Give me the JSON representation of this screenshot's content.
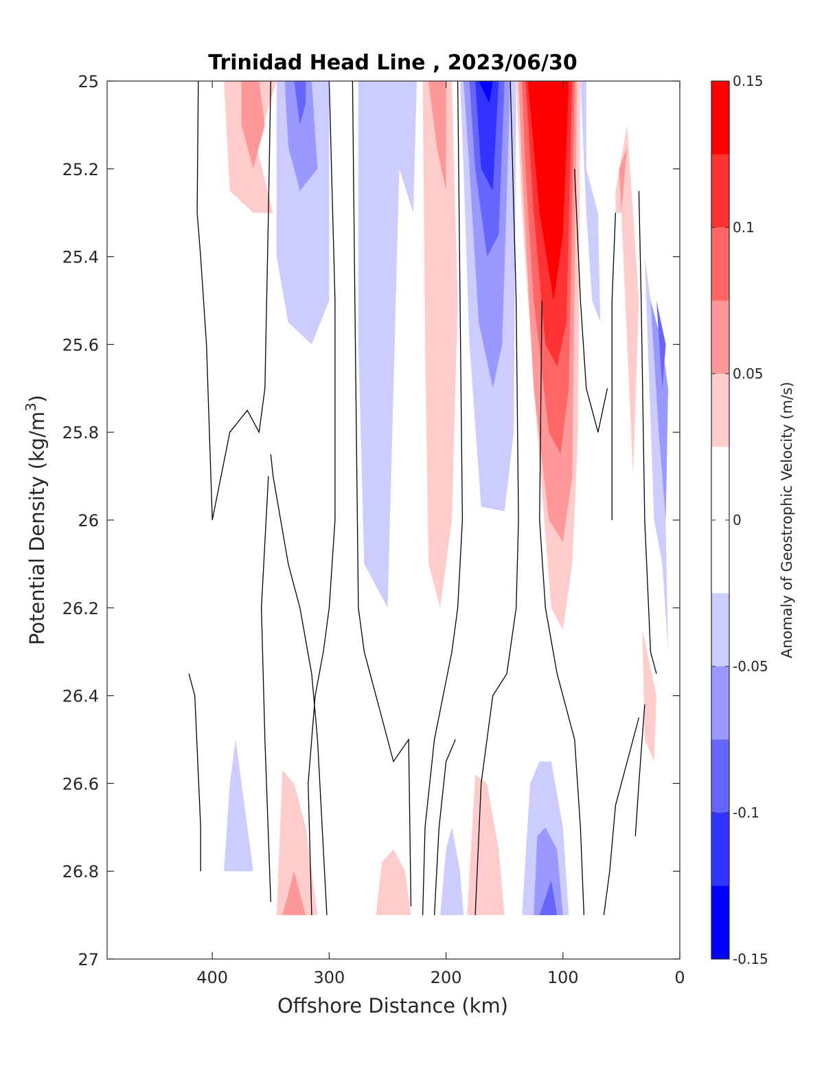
{
  "chart_data": {
    "type": "contour",
    "title": "Trinidad Head Line , 2023/06/30",
    "xlabel": "Offshore Distance (km)",
    "ylabel": "Potential Density (kg/m³)",
    "ylabel_base": "Potential Density (kg/m",
    "ylabel_sup": "3",
    "ylabel_close": ")",
    "xlim": [
      490,
      0
    ],
    "ylim": [
      27,
      25
    ],
    "x_reversed": true,
    "y_reversed": true,
    "xticks": [
      400,
      300,
      200,
      100,
      0
    ],
    "xtick_labels": [
      "400",
      "300",
      "200",
      "100",
      "0"
    ],
    "yticks": [
      25,
      25.2,
      25.4,
      25.6,
      25.8,
      26,
      26.2,
      26.4,
      26.6,
      26.8,
      27
    ],
    "ytick_labels": [
      "25",
      "25.2",
      "25.4",
      "25.6",
      "25.8",
      "26",
      "26.2",
      "26.4",
      "26.6",
      "26.8",
      "27"
    ],
    "grid": false,
    "colorbar": {
      "label": "Anomaly of Geostrophic Velocity (m/s)",
      "limits": [
        -0.15,
        0.15
      ],
      "ticks": [
        0.15,
        0.1,
        0.05,
        0,
        -0.05,
        -0.1,
        -0.15
      ],
      "tick_labels": [
        "0.15",
        "0.1",
        "0.05",
        "0",
        "-0.05",
        "-0.1",
        "-0.15"
      ],
      "levels": [
        -0.15,
        -0.125,
        -0.1,
        -0.075,
        -0.05,
        -0.025,
        0.025,
        0.05,
        0.075,
        0.1,
        0.125,
        0.15
      ],
      "colors": [
        "#0000ff",
        "#3333ff",
        "#6666ff",
        "#9999ff",
        "#ccccff",
        "#ffffff",
        "#ffcccc",
        "#ff9999",
        "#ff6666",
        "#ff3333",
        "#ff0000"
      ]
    },
    "regions": [
      {
        "level": 1,
        "points": [
          [
            400,
            25
          ],
          [
            345,
            25
          ],
          [
            362,
            25.15
          ],
          [
            348,
            25.3
          ],
          [
            365,
            25.3
          ],
          [
            385,
            25.25
          ],
          [
            390,
            25
          ]
        ]
      },
      {
        "level": 2,
        "points": [
          [
            375,
            25
          ],
          [
            360,
            25
          ],
          [
            355,
            25.1
          ],
          [
            365,
            25.2
          ],
          [
            375,
            25.1
          ]
        ]
      },
      {
        "level": -1,
        "points": [
          [
            345,
            25
          ],
          [
            300,
            25
          ],
          [
            300,
            25.1
          ],
          [
            300,
            25.5
          ],
          [
            315,
            25.6
          ],
          [
            335,
            25.55
          ],
          [
            345,
            25.4
          ]
        ]
      },
      {
        "level": -2,
        "points": [
          [
            338,
            25
          ],
          [
            315,
            25
          ],
          [
            310,
            25.2
          ],
          [
            325,
            25.25
          ],
          [
            335,
            25.15
          ]
        ]
      },
      {
        "level": -3,
        "points": [
          [
            330,
            25
          ],
          [
            320,
            25
          ],
          [
            320,
            25.05
          ],
          [
            325,
            25.1
          ]
        ]
      },
      {
        "level": -1,
        "points": [
          [
            275,
            25
          ],
          [
            225,
            25
          ],
          [
            228,
            25.3
          ],
          [
            240,
            25.2
          ],
          [
            250,
            26.2
          ],
          [
            270,
            26.1
          ],
          [
            275,
            25.6
          ]
        ]
      },
      {
        "level": 1,
        "points": [
          [
            220,
            25
          ],
          [
            195,
            25
          ],
          [
            190,
            25.5
          ],
          [
            195,
            26.0
          ],
          [
            205,
            26.2
          ],
          [
            215,
            26.1
          ],
          [
            218,
            25.6
          ]
        ]
      },
      {
        "level": 2,
        "points": [
          [
            215,
            25
          ],
          [
            200,
            25
          ],
          [
            200,
            25.25
          ],
          [
            208,
            25.15
          ]
        ]
      },
      {
        "level": -1,
        "points": [
          [
            188,
            25
          ],
          [
            140,
            25
          ],
          [
            142,
            25.8
          ],
          [
            150,
            25.98
          ],
          [
            170,
            25.97
          ],
          [
            180,
            25.6
          ],
          [
            185,
            25.2
          ]
        ]
      },
      {
        "level": -2,
        "points": [
          [
            185,
            25
          ],
          [
            145,
            25
          ],
          [
            152,
            25.6
          ],
          [
            160,
            25.7
          ],
          [
            172,
            25.55
          ],
          [
            180,
            25.2
          ]
        ]
      },
      {
        "level": -3,
        "points": [
          [
            180,
            25
          ],
          [
            150,
            25
          ],
          [
            155,
            25.35
          ],
          [
            165,
            25.4
          ],
          [
            175,
            25.2
          ]
        ]
      },
      {
        "level": -4,
        "points": [
          [
            175,
            25
          ],
          [
            155,
            25
          ],
          [
            160,
            25.25
          ],
          [
            170,
            25.2
          ]
        ]
      },
      {
        "level": -5,
        "points": [
          [
            172,
            25
          ],
          [
            160,
            25
          ],
          [
            163,
            25.05
          ]
        ]
      },
      {
        "level": 1,
        "points": [
          [
            140,
            25
          ],
          [
            85,
            25
          ],
          [
            87,
            25.8
          ],
          [
            92,
            26.1
          ],
          [
            100,
            26.25
          ],
          [
            110,
            26.2
          ],
          [
            122,
            25.8
          ],
          [
            135,
            25.3
          ]
        ]
      },
      {
        "level": 2,
        "points": [
          [
            138,
            25
          ],
          [
            88,
            25
          ],
          [
            92,
            25.9
          ],
          [
            100,
            26.05
          ],
          [
            112,
            26.0
          ],
          [
            125,
            25.7
          ],
          [
            135,
            25.2
          ]
        ]
      },
      {
        "level": 3,
        "points": [
          [
            135,
            25
          ],
          [
            90,
            25
          ],
          [
            95,
            25.7
          ],
          [
            102,
            25.85
          ],
          [
            112,
            25.8
          ],
          [
            125,
            25.5
          ],
          [
            132,
            25.2
          ]
        ]
      },
      {
        "level": 4,
        "points": [
          [
            132,
            25
          ],
          [
            92,
            25
          ],
          [
            97,
            25.55
          ],
          [
            105,
            25.65
          ],
          [
            115,
            25.6
          ],
          [
            125,
            25.3
          ]
        ]
      },
      {
        "level": 5,
        "points": [
          [
            130,
            25
          ],
          [
            95,
            25
          ],
          [
            100,
            25.35
          ],
          [
            108,
            25.5
          ],
          [
            120,
            25.3
          ]
        ]
      },
      {
        "level": 6,
        "points": [
          [
            128,
            25
          ],
          [
            96,
            25
          ],
          [
            100,
            25.2
          ],
          [
            108,
            25.3
          ],
          [
            118,
            25.15
          ]
        ]
      },
      {
        "level": -1,
        "points": [
          [
            85,
            25
          ],
          [
            80,
            25
          ],
          [
            80,
            25.2
          ],
          [
            70,
            25.3
          ],
          [
            68,
            25.55
          ],
          [
            75,
            25.5
          ],
          [
            80,
            25.3
          ]
        ]
      },
      {
        "level": 1,
        "points": [
          [
            45,
            25.1
          ],
          [
            55,
            25.25
          ],
          [
            55,
            25.3
          ],
          [
            50,
            25.3
          ],
          [
            40,
            25.9
          ],
          [
            35,
            25.5
          ]
        ]
      },
      {
        "level": 2,
        "points": [
          [
            45,
            25.15
          ],
          [
            52,
            25.2
          ],
          [
            50,
            25.3
          ]
        ]
      },
      {
        "level": -1,
        "points": [
          [
            30,
            25.4
          ],
          [
            25,
            25.5
          ],
          [
            15,
            25.6
          ],
          [
            10,
            26.3
          ],
          [
            15,
            26.1
          ],
          [
            22,
            26.0
          ]
        ]
      },
      {
        "level": -2,
        "points": [
          [
            25,
            25.5
          ],
          [
            15,
            25.6
          ],
          [
            10,
            25.7
          ],
          [
            12,
            26.0
          ],
          [
            18,
            25.8
          ]
        ]
      },
      {
        "level": -3,
        "points": [
          [
            20,
            25.5
          ],
          [
            12,
            25.6
          ],
          [
            15,
            25.7
          ]
        ]
      },
      {
        "level": 1,
        "points": [
          [
            32,
            26.25
          ],
          [
            20,
            26.4
          ],
          [
            22,
            26.55
          ],
          [
            30,
            26.5
          ]
        ]
      },
      {
        "level": -1,
        "points": [
          [
            390,
            26.8
          ],
          [
            365,
            26.8
          ],
          [
            380,
            26.5
          ],
          [
            385,
            26.6
          ]
        ]
      },
      {
        "level": 1,
        "points": [
          [
            345,
            26.9
          ],
          [
            310,
            26.9
          ],
          [
            320,
            26.7
          ],
          [
            330,
            26.6
          ],
          [
            340,
            26.57
          ]
        ]
      },
      {
        "level": 2,
        "points": [
          [
            340,
            26.9
          ],
          [
            320,
            26.9
          ],
          [
            330,
            26.8
          ]
        ]
      },
      {
        "level": -1,
        "points": [
          [
            205,
            26.9
          ],
          [
            185,
            26.9
          ],
          [
            188,
            26.8
          ],
          [
            195,
            26.7
          ],
          [
            200,
            26.75
          ]
        ]
      },
      {
        "level": 1,
        "points": [
          [
            260,
            26.9
          ],
          [
            230,
            26.9
          ],
          [
            235,
            26.8
          ],
          [
            245,
            26.75
          ],
          [
            255,
            26.78
          ]
        ]
      },
      {
        "level": 1,
        "points": [
          [
            182,
            26.9
          ],
          [
            150,
            26.9
          ],
          [
            155,
            26.75
          ],
          [
            165,
            26.6
          ],
          [
            175,
            26.58
          ]
        ]
      },
      {
        "level": -1,
        "points": [
          [
            135,
            26.9
          ],
          [
            95,
            26.9
          ],
          [
            100,
            26.7
          ],
          [
            110,
            26.55
          ],
          [
            120,
            26.55
          ],
          [
            128,
            26.6
          ]
        ]
      },
      {
        "level": -2,
        "points": [
          [
            125,
            26.9
          ],
          [
            100,
            26.9
          ],
          [
            105,
            26.75
          ],
          [
            115,
            26.7
          ],
          [
            122,
            26.72
          ]
        ]
      },
      {
        "level": -3,
        "points": [
          [
            120,
            26.9
          ],
          [
            105,
            26.9
          ],
          [
            110,
            26.82
          ]
        ]
      }
    ],
    "zero_contours": [
      [
        [
          412,
          25
        ],
        [
          413,
          25.3
        ],
        [
          410,
          25.4
        ],
        [
          405,
          25.6
        ],
        [
          400,
          26.0
        ],
        [
          385,
          25.8
        ],
        [
          370,
          25.75
        ],
        [
          360,
          25.8
        ],
        [
          355,
          25.7
        ],
        [
          352,
          25.3
        ],
        [
          350,
          25
        ]
      ],
      [
        [
          420,
          26.35
        ],
        [
          415,
          26.4
        ],
        [
          410,
          26.7
        ],
        [
          410,
          26.8
        ]
      ],
      [
        [
          350,
          25.85
        ],
        [
          348,
          25.9
        ],
        [
          335,
          26.1
        ],
        [
          325,
          26.2
        ],
        [
          315,
          26.35
        ],
        [
          310,
          26.5
        ],
        [
          302,
          26.9
        ]
      ],
      [
        [
          352,
          25.9
        ],
        [
          358,
          26.2
        ],
        [
          355,
          26.5
        ],
        [
          350,
          26.87
        ]
      ],
      [
        [
          300,
          25
        ],
        [
          295,
          25.5
        ],
        [
          295,
          26.0
        ],
        [
          300,
          26.2
        ],
        [
          305,
          26.3
        ],
        [
          312,
          26.4
        ],
        [
          318,
          26.6
        ],
        [
          315,
          26.9
        ]
      ],
      [
        [
          280,
          25
        ],
        [
          278,
          25.5
        ],
        [
          275,
          26.2
        ],
        [
          270,
          26.3
        ],
        [
          262,
          26.38
        ],
        [
          255,
          26.45
        ],
        [
          245,
          26.55
        ],
        [
          232,
          26.5
        ],
        [
          230,
          26.88
        ]
      ],
      [
        [
          190,
          25
        ],
        [
          188,
          25.5
        ],
        [
          186,
          26.0
        ],
        [
          190,
          26.2
        ],
        [
          195,
          26.3
        ],
        [
          210,
          26.5
        ],
        [
          218,
          26.7
        ],
        [
          220,
          26.9
        ]
      ],
      [
        [
          192,
          26.5
        ],
        [
          200,
          26.55
        ],
        [
          206,
          26.7
        ],
        [
          210,
          26.9
        ]
      ],
      [
        [
          145,
          25
        ],
        [
          140,
          25.5
        ],
        [
          138,
          26.0
        ],
        [
          140,
          26.2
        ],
        [
          148,
          26.35
        ],
        [
          160,
          26.4
        ],
        [
          170,
          26.6
        ],
        [
          175,
          26.9
        ]
      ],
      [
        [
          118,
          25.5
        ],
        [
          120,
          26.0
        ],
        [
          115,
          26.2
        ],
        [
          105,
          26.35
        ],
        [
          90,
          26.5
        ],
        [
          85,
          26.7
        ],
        [
          82,
          26.9
        ]
      ],
      [
        [
          90,
          25.2
        ],
        [
          85,
          25.5
        ],
        [
          80,
          25.7
        ],
        [
          70,
          25.8
        ],
        [
          62,
          25.7
        ]
      ],
      [
        [
          55,
          25.3
        ],
        [
          58,
          25.5
        ],
        [
          58,
          26.0
        ]
      ],
      [
        [
          35,
          26.45
        ],
        [
          45,
          26.55
        ],
        [
          55,
          26.65
        ],
        [
          60,
          26.8
        ],
        [
          65,
          26.9
        ]
      ],
      [
        [
          35,
          25.25
        ],
        [
          33,
          25.5
        ],
        [
          30,
          26.0
        ],
        [
          25,
          26.3
        ],
        [
          20,
          26.35
        ]
      ],
      [
        [
          30,
          26.42
        ],
        [
          35,
          26.6
        ],
        [
          38,
          26.72
        ]
      ]
    ]
  }
}
